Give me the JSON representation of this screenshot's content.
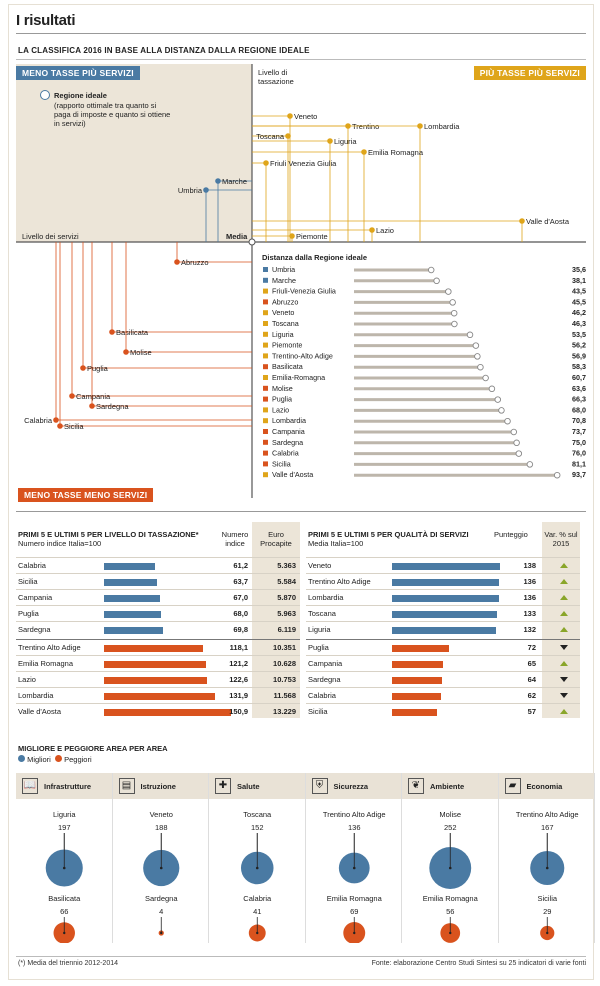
{
  "colors": {
    "blue": "#4a7aa3",
    "orange": "#d9531e",
    "yellow": "#dfa51a",
    "beige": "#ece5d8",
    "blue_tag": "#4a7aa3",
    "orange_tag": "#d9531e",
    "gray_bar": "#bdb6ab"
  },
  "header": {
    "title": "I risultati",
    "subtitle": "LA CLASSIFICA 2016 IN BASE ALLA DISTANZA DALLA REGIONE IDEALE"
  },
  "quadrant": {
    "tag_top_left": "MENO TASSE PIÙ SERVIZI",
    "tag_top_right": "PIÙ TASSE PIÙ SERVIZI",
    "tag_bottom_left": "MENO TASSE MENO SERVIZI",
    "ideal_label": "Regione ideale",
    "ideal_desc": "(rapporto ottimale tra quanto si paga di imposte e quanto si ottiene in servizi)",
    "y_axis_label": "Livello di tassazione",
    "x_axis_label": "Livello dei servizi",
    "center_label": "Media",
    "regions": [
      {
        "name": "Veneto",
        "color": "yellow"
      },
      {
        "name": "Trentino",
        "color": "yellow"
      },
      {
        "name": "Lombardia",
        "color": "yellow"
      },
      {
        "name": "Toscana",
        "color": "yellow"
      },
      {
        "name": "Liguria",
        "color": "yellow"
      },
      {
        "name": "Emilia Romagna",
        "color": "yellow"
      },
      {
        "name": "Friuli Venezia Giulia",
        "color": "yellow"
      },
      {
        "name": "Umbria",
        "color": "blue"
      },
      {
        "name": "Marche",
        "color": "blue"
      },
      {
        "name": "Valle d'Aosta",
        "color": "yellow"
      },
      {
        "name": "Lazio",
        "color": "yellow"
      },
      {
        "name": "Piemonte",
        "color": "yellow"
      },
      {
        "name": "Abruzzo",
        "color": "orange"
      },
      {
        "name": "Basilicata",
        "color": "orange"
      },
      {
        "name": "Molise",
        "color": "orange"
      },
      {
        "name": "Puglia",
        "color": "orange"
      },
      {
        "name": "Campania",
        "color": "orange"
      },
      {
        "name": "Sardegna",
        "color": "orange"
      },
      {
        "name": "Calabria",
        "color": "orange"
      },
      {
        "name": "Sicilia",
        "color": "orange"
      }
    ]
  },
  "chart_data": [
    {
      "type": "bar",
      "title": "Distanza dalla Regione ideale",
      "categories": [
        "Umbria",
        "Marche",
        "Friuli-Venezia Giulia",
        "Abruzzo",
        "Veneto",
        "Toscana",
        "Liguria",
        "Piemonte",
        "Trentino-Alto Adige",
        "Basilicata",
        "Emilia-Romagna",
        "Molise",
        "Puglia",
        "Lazio",
        "Lombardia",
        "Campania",
        "Sardegna",
        "Calabria",
        "Sicilia",
        "Valle d'Aosta"
      ],
      "values": [
        35.6,
        38.1,
        43.5,
        45.5,
        46.2,
        46.3,
        53.5,
        56.2,
        56.9,
        58.3,
        60.7,
        63.6,
        66.3,
        68.0,
        70.8,
        73.7,
        75.0,
        76.0,
        81.1,
        93.7
      ],
      "labels": [
        "35,6",
        "38,1",
        "43,5",
        "45,5",
        "46,2",
        "46,3",
        "53,5",
        "56,2",
        "56,9",
        "58,3",
        "60,7",
        "63,6",
        "66,3",
        "68,0",
        "70,8",
        "73,7",
        "75,0",
        "76,0",
        "81,1",
        "93,7"
      ],
      "colors": [
        "blue",
        "blue",
        "yellow",
        "orange",
        "yellow",
        "yellow",
        "yellow",
        "yellow",
        "yellow",
        "orange",
        "yellow",
        "orange",
        "orange",
        "yellow",
        "yellow",
        "orange",
        "orange",
        "orange",
        "orange",
        "yellow"
      ],
      "xlim": [
        0,
        95
      ]
    },
    {
      "type": "bar",
      "title": "PRIMI 5 E ULTIMI 5 PER LIVELLO DI TASSAZIONE*",
      "subtitle": "Numero indice Italia=100",
      "col1": "Numero indice",
      "col2": "Euro Procapite",
      "categories": [
        "Calabria",
        "Sicilia",
        "Campania",
        "Puglia",
        "Sardegna",
        "Trentino Alto Adige",
        "Emilia Romagna",
        "Lazio",
        "Lombardia",
        "Valle d'Aosta"
      ],
      "values": [
        61.2,
        63.7,
        67.0,
        68.0,
        69.8,
        118.1,
        121.2,
        122.6,
        131.9,
        150.9
      ],
      "labels": [
        "61,2",
        "63,7",
        "67,0",
        "68,0",
        "69,8",
        "118,1",
        "121,2",
        "122,6",
        "131,9",
        "150,9"
      ],
      "euro": [
        "5.363",
        "5.584",
        "5.870",
        "5.963",
        "6.119",
        "10.351",
        "10.628",
        "10.753",
        "11.568",
        "13.229"
      ],
      "colors": [
        "blue",
        "blue",
        "blue",
        "blue",
        "blue",
        "orange",
        "orange",
        "orange",
        "orange",
        "orange"
      ]
    },
    {
      "type": "bar",
      "title": "PRIMI 5 E ULTIMI 5 PER QUALITÀ DI SERVIZI",
      "subtitle": "Media Italia=100",
      "col1": "Punteggio",
      "col2": "Var. % sul 2015",
      "categories": [
        "Veneto",
        "Trentino Alto Adige",
        "Lombardia",
        "Toscana",
        "Liguria",
        "Puglia",
        "Campania",
        "Sardegna",
        "Calabria",
        "Sicilia"
      ],
      "values": [
        138,
        136,
        136,
        133,
        132,
        72,
        65,
        64,
        62,
        57
      ],
      "labels": [
        "138",
        "136",
        "136",
        "133",
        "132",
        "72",
        "65",
        "64",
        "62",
        "57"
      ],
      "trend": [
        "up",
        "up",
        "up",
        "up",
        "up",
        "down",
        "up",
        "down",
        "down",
        "up"
      ],
      "colors": [
        "blue",
        "blue",
        "blue",
        "blue",
        "blue",
        "orange",
        "orange",
        "orange",
        "orange",
        "orange"
      ]
    },
    {
      "type": "scatter",
      "title": "MIGLIORE E PEGGIORE AREA PER AREA",
      "legend": [
        "Migliori",
        "Peggiori"
      ],
      "panels": [
        {
          "area": "Infrastrutture",
          "icon": "book-icon",
          "best": "Liguria",
          "best_val": 197,
          "worst": "Basilicata",
          "worst_val": 66
        },
        {
          "area": "Istruzione",
          "icon": "building-icon",
          "best": "Veneto",
          "best_val": 188,
          "worst": "Sardegna",
          "worst_val": 4
        },
        {
          "area": "Salute",
          "icon": "medkit-icon",
          "best": "Toscana",
          "best_val": 152,
          "worst": "Calabria",
          "worst_val": 41
        },
        {
          "area": "Sicurezza",
          "icon": "shield-icon",
          "best": "Trentino Alto Adige",
          "best_val": 136,
          "worst": "Emilia Romagna",
          "worst_val": 69
        },
        {
          "area": "Ambiente",
          "icon": "leaf-icon",
          "best": "Molise",
          "best_val": 252,
          "worst": "Emilia Romagna",
          "worst_val": 56
        },
        {
          "area": "Economia",
          "icon": "money-icon",
          "best": "Trentino Alto Adige",
          "best_val": 167,
          "worst": "Sicilia",
          "worst_val": 29
        }
      ]
    }
  ],
  "footer": {
    "note": "(*) Media del triennio 2012-2014",
    "source": "Fonte: elaborazione Centro Studi Sintesi su 25 indicatori di varie fonti"
  }
}
